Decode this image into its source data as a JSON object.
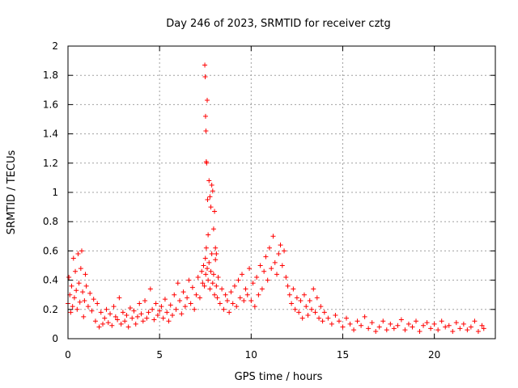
{
  "chart_data": {
    "type": "scatter",
    "title": "Day 246 of 2023, SRMTID for receiver cztg",
    "xlabel": "GPS time / hours",
    "ylabel": "SRMTID / TECUs",
    "xlim": [
      0,
      23.33
    ],
    "ylim": [
      0,
      2
    ],
    "xticks": [
      0,
      5,
      10,
      15,
      20
    ],
    "xtick_labels": [
      "0",
      "5",
      "10",
      "15",
      "20"
    ],
    "yticks": [
      0,
      0.2,
      0.4,
      0.6,
      0.8,
      1,
      1.2,
      1.4,
      1.6,
      1.8,
      2
    ],
    "ytick_labels": [
      "0",
      "0.2",
      "0.4",
      "0.6",
      "0.8",
      "1",
      "1.2",
      "1.4",
      "1.6",
      "1.8",
      "2"
    ],
    "grid": true,
    "marker": "plus",
    "series": [
      {
        "name": "SRMTID",
        "color": "#ff0000",
        "x": [
          0.0,
          0.05,
          0.1,
          0.15,
          0.2,
          0.25,
          0.3,
          0.35,
          0.4,
          0.45,
          0.5,
          0.55,
          0.6,
          0.65,
          0.7,
          0.75,
          0.8,
          0.85,
          0.9,
          0.95,
          1.0,
          1.1,
          1.2,
          1.3,
          1.4,
          1.5,
          1.6,
          1.7,
          1.8,
          1.9,
          2.0,
          2.1,
          2.2,
          2.3,
          2.4,
          2.5,
          2.6,
          2.7,
          2.8,
          2.9,
          3.0,
          3.1,
          3.2,
          3.3,
          3.4,
          3.5,
          3.6,
          3.7,
          3.8,
          3.9,
          4.0,
          4.1,
          4.2,
          4.3,
          4.4,
          4.5,
          4.6,
          4.7,
          4.8,
          4.9,
          5.0,
          5.1,
          5.2,
          5.3,
          5.4,
          5.5,
          5.6,
          5.7,
          5.8,
          5.9,
          6.0,
          6.1,
          6.2,
          6.3,
          6.4,
          6.5,
          6.6,
          6.7,
          6.8,
          6.9,
          7.0,
          7.1,
          7.2,
          7.3,
          7.35,
          7.4,
          7.45,
          7.5,
          7.52,
          7.55,
          7.6,
          7.65,
          7.7,
          7.75,
          7.8,
          7.85,
          7.9,
          7.95,
          8.0,
          8.05,
          8.1,
          8.15,
          8.2,
          8.3,
          8.4,
          8.5,
          8.6,
          8.7,
          8.8,
          8.9,
          9.0,
          9.1,
          9.2,
          9.3,
          9.4,
          9.5,
          9.6,
          9.7,
          9.8,
          9.9,
          10.0,
          10.1,
          10.2,
          10.3,
          10.4,
          10.5,
          10.6,
          10.7,
          10.8,
          10.9,
          11.0,
          11.1,
          11.2,
          11.3,
          11.4,
          11.5,
          11.6,
          11.7,
          11.8,
          11.9,
          12.0,
          12.1,
          12.2,
          12.3,
          12.4,
          12.5,
          12.6,
          12.7,
          12.8,
          12.9,
          13.0,
          13.1,
          13.2,
          13.3,
          13.4,
          13.5,
          13.6,
          13.7,
          13.8,
          13.9,
          14.0,
          14.2,
          14.4,
          14.6,
          14.8,
          15.0,
          15.2,
          15.4,
          15.6,
          15.8,
          16.0,
          16.2,
          16.4,
          16.6,
          16.8,
          17.0,
          17.2,
          17.4,
          17.6,
          17.8,
          18.0,
          18.2,
          18.4,
          18.6,
          18.8,
          19.0,
          19.2,
          19.4,
          19.6,
          19.8,
          20.0,
          20.2,
          20.4,
          20.6,
          20.8,
          21.0,
          21.2,
          21.4,
          21.6,
          21.8,
          22.0,
          22.2,
          22.4,
          22.6,
          22.7,
          7.47,
          7.49,
          7.51,
          7.53,
          7.55,
          7.57,
          7.6,
          7.62,
          7.65,
          7.7,
          7.75,
          7.8,
          7.95,
          8.05,
          8.1,
          7.85,
          7.9,
          8.0
        ],
        "y": [
          0.24,
          0.42,
          0.3,
          0.18,
          0.36,
          0.22,
          0.55,
          0.28,
          0.46,
          0.33,
          0.2,
          0.58,
          0.38,
          0.25,
          0.48,
          0.6,
          0.32,
          0.15,
          0.26,
          0.44,
          0.36,
          0.22,
          0.31,
          0.19,
          0.27,
          0.12,
          0.24,
          0.08,
          0.18,
          0.1,
          0.14,
          0.2,
          0.11,
          0.17,
          0.09,
          0.22,
          0.15,
          0.13,
          0.28,
          0.1,
          0.18,
          0.12,
          0.16,
          0.08,
          0.21,
          0.14,
          0.19,
          0.1,
          0.15,
          0.24,
          0.17,
          0.12,
          0.26,
          0.14,
          0.18,
          0.34,
          0.2,
          0.13,
          0.24,
          0.16,
          0.19,
          0.22,
          0.14,
          0.27,
          0.18,
          0.12,
          0.23,
          0.16,
          0.3,
          0.2,
          0.38,
          0.26,
          0.17,
          0.32,
          0.22,
          0.28,
          0.4,
          0.24,
          0.35,
          0.2,
          0.3,
          0.42,
          0.28,
          0.46,
          0.38,
          0.5,
          0.36,
          0.55,
          0.44,
          0.62,
          0.48,
          0.4,
          0.52,
          0.34,
          0.46,
          0.58,
          0.38,
          0.44,
          0.3,
          0.54,
          0.36,
          0.28,
          0.42,
          0.24,
          0.34,
          0.2,
          0.3,
          0.26,
          0.18,
          0.32,
          0.24,
          0.36,
          0.22,
          0.4,
          0.28,
          0.44,
          0.26,
          0.34,
          0.3,
          0.48,
          0.26,
          0.38,
          0.22,
          0.42,
          0.3,
          0.5,
          0.34,
          0.46,
          0.56,
          0.4,
          0.62,
          0.48,
          0.7,
          0.52,
          0.44,
          0.58,
          0.64,
          0.5,
          0.6,
          0.42,
          0.36,
          0.3,
          0.24,
          0.34,
          0.2,
          0.28,
          0.18,
          0.26,
          0.14,
          0.3,
          0.22,
          0.16,
          0.26,
          0.2,
          0.34,
          0.18,
          0.28,
          0.14,
          0.22,
          0.12,
          0.18,
          0.14,
          0.1,
          0.16,
          0.12,
          0.08,
          0.14,
          0.1,
          0.06,
          0.12,
          0.09,
          0.15,
          0.07,
          0.11,
          0.05,
          0.08,
          0.12,
          0.06,
          0.1,
          0.07,
          0.09,
          0.13,
          0.06,
          0.1,
          0.08,
          0.12,
          0.05,
          0.09,
          0.11,
          0.07,
          0.1,
          0.06,
          0.12,
          0.08,
          0.09,
          0.05,
          0.11,
          0.07,
          0.1,
          0.06,
          0.08,
          0.12,
          0.05,
          0.09,
          0.07,
          1.87,
          1.79,
          1.52,
          1.42,
          1.21,
          1.2,
          1.63,
          0.95,
          0.71,
          1.08,
          0.97,
          0.9,
          0.75,
          0.62,
          0.58,
          1.05,
          1.01,
          0.87
        ]
      }
    ]
  }
}
